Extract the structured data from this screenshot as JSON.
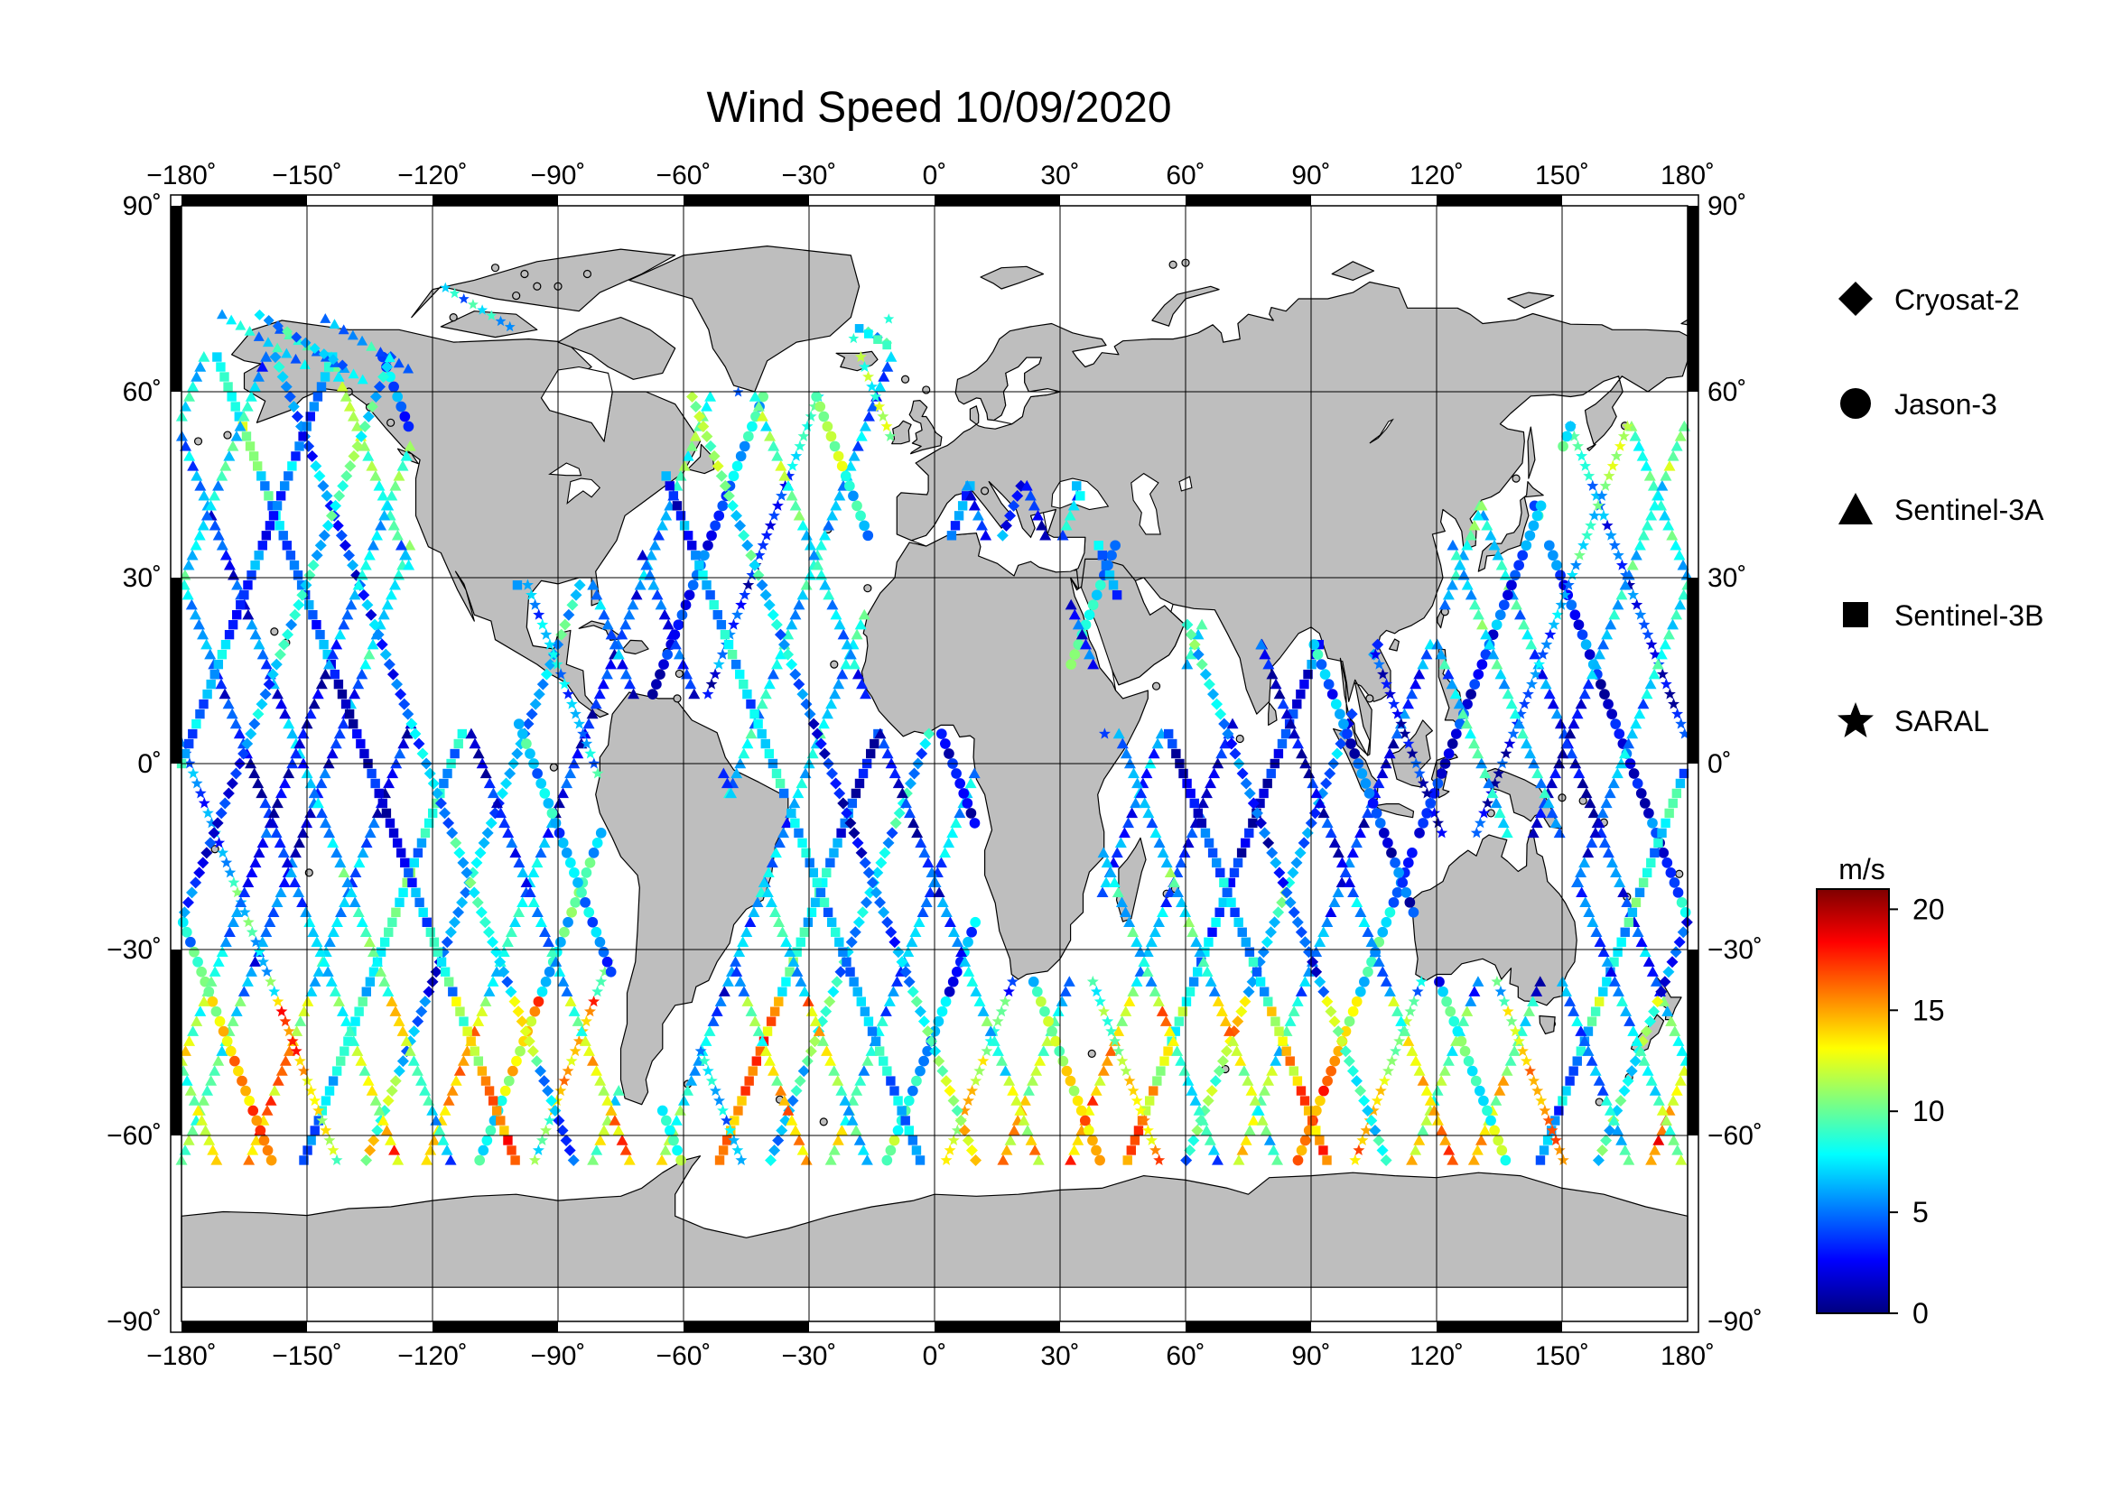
{
  "title": "Wind Speed 10/09/2020",
  "legend": {
    "items": [
      {
        "label": "Cryosat-2",
        "symbol": "diamond"
      },
      {
        "label": "Jason-3",
        "symbol": "circle"
      },
      {
        "label": "Sentinel-3A",
        "symbol": "triangle"
      },
      {
        "label": "Sentinel-3B",
        "symbol": "square"
      },
      {
        "label": "SARAL",
        "symbol": "star"
      }
    ]
  },
  "colorbar": {
    "unit": "m/s",
    "range": [
      0,
      21
    ],
    "ticks": [
      "20",
      "15",
      "10",
      "5",
      "0"
    ],
    "tick_values": [
      20,
      15,
      10,
      5,
      0
    ],
    "palette": [
      "#00007f",
      "#0000ff",
      "#007fff",
      "#00ffff",
      "#7fff7f",
      "#ffff00",
      "#ff7f00",
      "#ff0000",
      "#7f0000"
    ]
  },
  "axes": {
    "lon_ticks": [
      "−180˚",
      "−150˚",
      "−120˚",
      "−90˚",
      "−60˚",
      "−30˚",
      "0˚",
      "30˚",
      "60˚",
      "90˚",
      "120˚",
      "150˚",
      "180˚"
    ],
    "lon_values": [
      -180,
      -150,
      -120,
      -90,
      -60,
      -30,
      0,
      30,
      60,
      90,
      120,
      150,
      180
    ],
    "lat_ticks": [
      "90˚",
      "60˚",
      "30˚",
      "0˚",
      "−30˚",
      "−60˚",
      "−90˚"
    ],
    "lat_values": [
      90,
      60,
      30,
      0,
      -30,
      -60,
      -90
    ],
    "lon_range": [
      -180,
      180
    ],
    "lat_range": [
      -90,
      90
    ],
    "grid": true
  },
  "colors": {
    "land": "#bebebe",
    "coast": "#000000",
    "ocean": "#ffffff"
  }
}
